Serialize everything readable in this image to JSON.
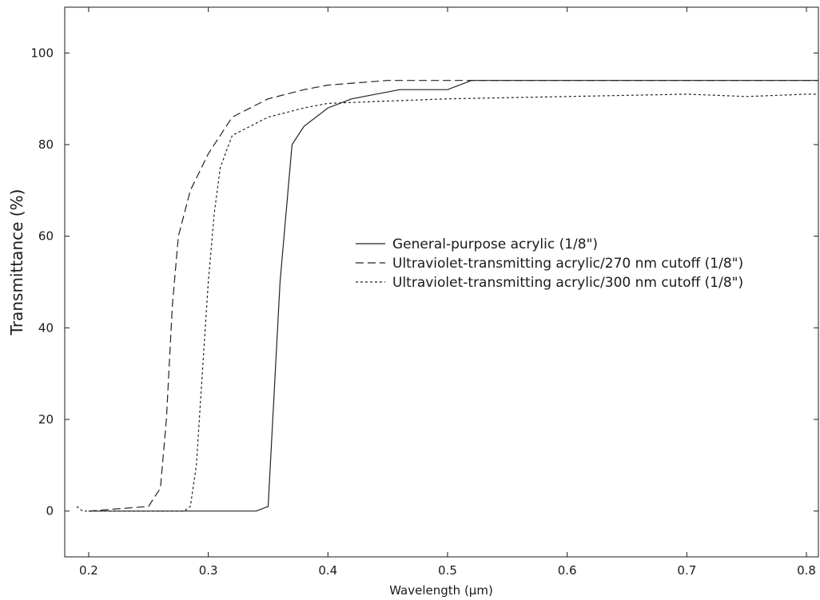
{
  "chart_data": {
    "type": "line",
    "title": "",
    "xlabel": "Wavelength (µm)",
    "ylabel": "Transmittance (%)",
    "xlim": [
      0.18,
      0.81
    ],
    "ylim": [
      -10,
      110
    ],
    "xticks": [
      0.2,
      0.3,
      0.4,
      0.5,
      0.6,
      0.7,
      0.8
    ],
    "yticks": [
      0,
      20,
      40,
      60,
      80,
      100
    ],
    "xtick_labels": [
      "0.2",
      "0.3",
      "0.4",
      "0.5",
      "0.6",
      "0.7",
      "0.8"
    ],
    "ytick_labels": [
      "0",
      "20",
      "40",
      "60",
      "80",
      "100"
    ],
    "grid": false,
    "legend_position": "center-right",
    "series": [
      {
        "name": "General-purpose acrylic (1/8\")",
        "style": "solid",
        "x": [
          0.2,
          0.34,
          0.35,
          0.36,
          0.37,
          0.38,
          0.4,
          0.42,
          0.46,
          0.5,
          0.52,
          0.81
        ],
        "y": [
          0,
          0,
          1,
          50,
          80,
          84,
          88,
          90,
          92,
          92,
          94,
          94
        ]
      },
      {
        "name": "Ultraviolet-transmitting acrylic/270 nm cutoff (1/8\")",
        "style": "dashed",
        "x": [
          0.2,
          0.25,
          0.26,
          0.265,
          0.27,
          0.275,
          0.28,
          0.285,
          0.3,
          0.32,
          0.35,
          0.38,
          0.4,
          0.45,
          0.5,
          0.55,
          0.81
        ],
        "y": [
          0,
          1,
          5,
          20,
          45,
          60,
          65,
          70,
          78,
          86,
          90,
          92,
          93,
          94,
          94,
          94,
          94
        ]
      },
      {
        "name": "Ultraviolet-transmitting acrylic/300 nm cutoff (1/8\")",
        "style": "dotted",
        "x": [
          0.19,
          0.195,
          0.2,
          0.28,
          0.285,
          0.29,
          0.295,
          0.3,
          0.305,
          0.31,
          0.32,
          0.35,
          0.38,
          0.4,
          0.45,
          0.5,
          0.6,
          0.7,
          0.75,
          0.8,
          0.81
        ],
        "y": [
          1,
          0,
          0,
          0,
          1,
          10,
          30,
          50,
          65,
          75,
          82,
          86,
          88,
          89,
          89.5,
          90,
          90.5,
          91,
          90.5,
          91,
          91
        ]
      }
    ]
  }
}
